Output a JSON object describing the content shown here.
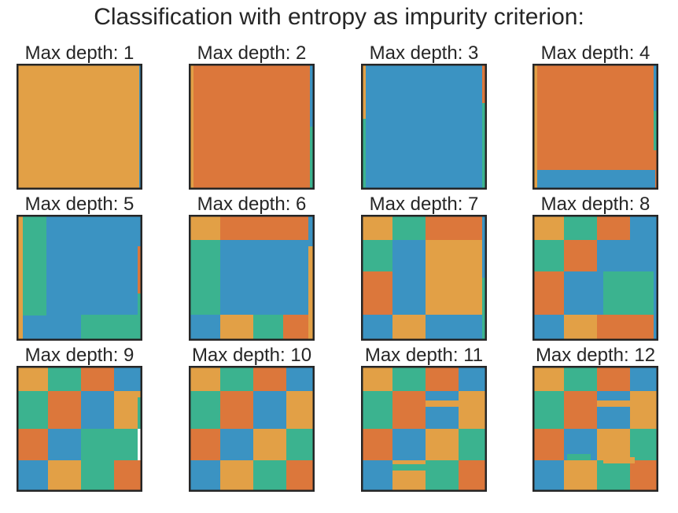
{
  "chart_data": {
    "type": "heatmap",
    "title": "Classification with entropy as impurity criterion:",
    "class_colors": [
      "#e2a046",
      "#dc773b",
      "#3b93c2",
      "#3bb38f"
    ],
    "border_color": "#262626",
    "panels": [
      {
        "title": "Max depth: 1",
        "max_depth": 1
      },
      {
        "title": "Max depth: 2",
        "max_depth": 2
      },
      {
        "title": "Max depth: 3",
        "max_depth": 3
      },
      {
        "title": "Max depth: 4",
        "max_depth": 4
      },
      {
        "title": "Max depth: 5",
        "max_depth": 5
      },
      {
        "title": "Max depth: 6",
        "max_depth": 6
      },
      {
        "title": "Max depth: 7",
        "max_depth": 7
      },
      {
        "title": "Max depth: 8",
        "max_depth": 8
      },
      {
        "title": "Max depth: 9",
        "max_depth": 9
      },
      {
        "title": "Max depth: 10",
        "max_depth": 10
      },
      {
        "title": "Max depth: 11",
        "max_depth": 11
      },
      {
        "title": "Max depth: 12",
        "max_depth": 12
      }
    ],
    "grid_on": false,
    "axes_ticks": false
  }
}
